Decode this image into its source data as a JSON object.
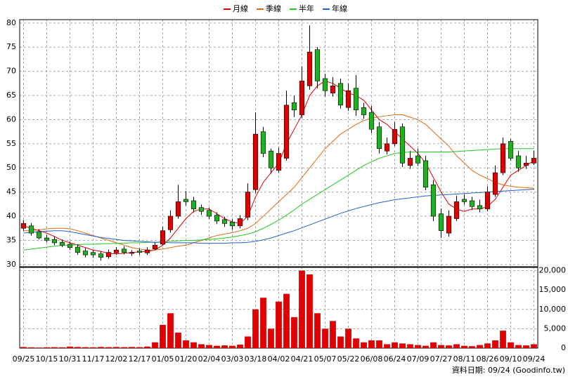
{
  "chart_data": {
    "type": "candlestick",
    "categories": [
      "09/25",
      null,
      null,
      "10/15",
      null,
      null,
      "10/31",
      null,
      null,
      "11/17",
      null,
      null,
      "12/02",
      null,
      null,
      "12/17",
      null,
      null,
      "01/05",
      null,
      null,
      "01/20",
      null,
      null,
      "02/04",
      null,
      null,
      "03/03",
      null,
      null,
      "03/18",
      null,
      null,
      "04/02",
      null,
      null,
      "04/21",
      null,
      null,
      "05/07",
      null,
      null,
      "05/22",
      null,
      null,
      "06/08",
      null,
      null,
      "06/24",
      null,
      null,
      "07/09",
      null,
      null,
      "07/27",
      null,
      null,
      "08/11",
      null,
      null,
      "08/26",
      null,
      null,
      "09/10",
      null,
      null,
      "09/24"
    ],
    "open": [
      37.5,
      38,
      36.8,
      35.5,
      35.2,
      34.6,
      34.2,
      33.6,
      32.8,
      32.5,
      32.2,
      31.6,
      32.4,
      33.2,
      32.3,
      32.8,
      32.4,
      33.2,
      34.2,
      37.2,
      40,
      43.5,
      43.2,
      41.8,
      41.2,
      40.2,
      39.3,
      38.8,
      38,
      39.8,
      45.5,
      57.5,
      53.5,
      49.5,
      52,
      63.5,
      61,
      67,
      74.5,
      68.5,
      65.5,
      67.5,
      62.5,
      66.5,
      62.5,
      61.5,
      58.5,
      53.5,
      55,
      58.5,
      50.5,
      52.5,
      51.5,
      46.5,
      40.5,
      36.5,
      39.5,
      43.5,
      43.2,
      42.2,
      41.5,
      44.5,
      49,
      55.5,
      52.5,
      50.5,
      51
    ],
    "high": [
      39.2,
      38.6,
      37.3,
      36.1,
      35.8,
      35.2,
      34.8,
      34.2,
      33.4,
      33,
      32.8,
      33.1,
      33.6,
      33.8,
      33,
      33.3,
      33.6,
      34.6,
      37.8,
      41.2,
      46.5,
      45.2,
      44,
      42.4,
      41.8,
      40.8,
      39.9,
      39.4,
      40.2,
      46.8,
      61.5,
      58.5,
      54,
      54.2,
      66,
      65,
      71,
      79.5,
      75,
      69.5,
      68.8,
      68.5,
      67.5,
      69.2,
      63.5,
      62.8,
      59.5,
      56.3,
      59.5,
      59.2,
      53.5,
      54,
      52.5,
      47.5,
      41.6,
      41.2,
      44.2,
      44.5,
      44,
      43.4,
      46.2,
      50.5,
      56.3,
      56,
      53.5,
      52.5,
      53.6
    ],
    "low": [
      37,
      36,
      35.2,
      34.6,
      34,
      33.6,
      33,
      32,
      31.5,
      31.4,
      30.8,
      31.2,
      32,
      32.1,
      31.8,
      32,
      32,
      33,
      34,
      36.6,
      39.5,
      42.2,
      40.8,
      40.3,
      39.4,
      38.4,
      37.8,
      37.2,
      37.5,
      39.2,
      44.8,
      52.2,
      48.8,
      49,
      51.5,
      60.5,
      60.3,
      66.2,
      66.5,
      64.8,
      64.8,
      62.3,
      61.8,
      60.8,
      60.2,
      57.2,
      53,
      52.8,
      54.5,
      50.2,
      49.8,
      50.4,
      45.4,
      39,
      35.5,
      35.8,
      39,
      42.4,
      41.3,
      40.8,
      41,
      44,
      48.5,
      51.5,
      49.2,
      49.8,
      50.6
    ],
    "close": [
      38.5,
      36.5,
      35.5,
      35,
      34.5,
      34,
      33.5,
      32.5,
      32,
      32,
      31.5,
      32.5,
      33,
      32.5,
      32.5,
      32.5,
      33,
      34,
      37,
      40,
      43,
      43,
      41.5,
      41,
      40,
      39,
      38.5,
      38,
      39.5,
      45,
      57,
      53,
      50,
      53,
      63,
      62,
      68,
      74,
      68,
      66,
      67,
      63,
      66,
      62,
      61,
      58,
      54,
      55,
      58,
      51,
      52,
      51,
      46,
      40,
      37,
      40,
      43,
      43,
      42,
      41.5,
      45,
      49,
      55,
      52,
      50,
      51,
      52
    ],
    "up_color": "#e00000",
    "down_color": "#20b020",
    "ylim": [
      29.4,
      80.7
    ],
    "yticks": [
      30,
      35,
      40,
      45,
      50,
      55,
      60,
      65,
      70,
      75,
      80
    ],
    "series": [
      {
        "name": "月線",
        "color": "#e00000",
        "values": [
          38,
          37.5,
          37,
          36.5,
          35.8,
          35,
          34.5,
          34,
          33.5,
          33,
          32.7,
          32.3,
          32.2,
          32.3,
          32.5,
          32.6,
          32.7,
          33,
          34,
          35.5,
          37.5,
          39.5,
          41,
          41.5,
          41.5,
          40.5,
          39.5,
          38.8,
          38.5,
          40,
          44,
          47,
          49,
          51,
          55,
          58,
          61,
          65,
          67,
          68,
          67.5,
          66.5,
          65.5,
          65,
          64,
          62,
          60,
          59,
          57.5,
          56,
          54.5,
          53,
          51,
          48,
          45,
          42.5,
          41.5,
          41,
          41.5,
          41.5,
          42,
          43.5,
          46,
          48.5,
          49.5,
          50.5,
          51.5
        ]
      },
      {
        "name": "季線",
        "color": "#e06a10",
        "values": [
          37,
          37,
          37.2,
          37.4,
          37.5,
          37.5,
          37.4,
          37,
          36.5,
          36,
          35.5,
          35,
          34.5,
          34,
          33.5,
          33.2,
          33,
          33,
          33.2,
          33.5,
          33.8,
          34,
          34.5,
          35,
          35.5,
          36,
          36.3,
          36.6,
          37,
          37.5,
          38.5,
          40,
          41.5,
          43,
          44.5,
          46,
          48,
          50,
          52,
          54,
          55.5,
          57,
          58,
          59,
          59.8,
          60.3,
          60.6,
          60.8,
          61,
          61,
          60.5,
          60,
          59,
          57.5,
          56,
          54.5,
          52.5,
          51,
          49.5,
          48.5,
          47.8,
          47,
          46.5,
          46.2,
          46,
          45.9,
          45.8
        ]
      },
      {
        "name": "半年",
        "color": "#20c820",
        "values": [
          33,
          33.2,
          33.4,
          33.6,
          33.8,
          34,
          34,
          34.1,
          34.2,
          34.2,
          34.3,
          34.3,
          34.4,
          34.4,
          34.5,
          34.5,
          34.6,
          34.6,
          34.7,
          34.8,
          34.9,
          35,
          35,
          35.1,
          35.2,
          35.3,
          35.5,
          35.7,
          36,
          36.3,
          36.8,
          37.5,
          38.3,
          39.2,
          40.2,
          41.3,
          42.5,
          43.5,
          44.5,
          45.5,
          46.5,
          47.5,
          48.5,
          49.5,
          50.5,
          51.3,
          52,
          52.5,
          53,
          53.2,
          53.3,
          53.3,
          53.3,
          53.3,
          53.3,
          53.3,
          53.4,
          53.5,
          53.6,
          53.7,
          53.8,
          53.9,
          54,
          54,
          54,
          54,
          54
        ]
      },
      {
        "name": "年線",
        "color": "#2060d0",
        "values": [
          36.5,
          36.7,
          36.8,
          36.9,
          37,
          37,
          36.8,
          36.5,
          36.2,
          35.9,
          35.6,
          35.4,
          35.2,
          35,
          34.9,
          34.8,
          34.7,
          34.6,
          34.6,
          34.5,
          34.5,
          34.5,
          34.5,
          34.4,
          34.4,
          34.4,
          34.4,
          34.5,
          34.5,
          34.6,
          34.8,
          35.1,
          35.5,
          36,
          36.5,
          37,
          37.6,
          38.2,
          38.8,
          39.4,
          40,
          40.6,
          41.1,
          41.6,
          42,
          42.4,
          42.8,
          43.1,
          43.4,
          43.6,
          43.8,
          44,
          44.2,
          44.3,
          44.4,
          44.5,
          44.6,
          44.7,
          44.8,
          44.9,
          45,
          45.1,
          45.2,
          45.3,
          45.4,
          45.5,
          45.6
        ]
      }
    ],
    "volume": {
      "color": "#e00000",
      "values": [
        300,
        200,
        150,
        200,
        250,
        200,
        400,
        300,
        250,
        200,
        300,
        250,
        300,
        250,
        300,
        250,
        400,
        1500,
        6000,
        9000,
        4000,
        2000,
        1500,
        1000,
        800,
        600,
        700,
        600,
        900,
        3000,
        10000,
        13000,
        5000,
        12000,
        14000,
        8000,
        20000,
        19000,
        9000,
        5000,
        7000,
        3000,
        5000,
        2500,
        1500,
        2000,
        2000,
        1000,
        1500,
        1200,
        1000,
        800,
        600,
        1500,
        800,
        700,
        1000,
        600,
        500,
        800,
        1200,
        2000,
        4500,
        1500,
        800,
        700,
        1000
      ],
      "ylim": [
        0,
        21000
      ],
      "yticks": [
        0,
        {
          "value": 5000,
          "label": "5,000"
        },
        {
          "value": 10000,
          "label": "10,000"
        },
        {
          "value": 15000,
          "label": "15,000"
        },
        {
          "value": 20000,
          "label": "20,000"
        }
      ]
    },
    "grid": true,
    "footer": "資料日期: 09/24  (Goodinfo.tw)"
  }
}
